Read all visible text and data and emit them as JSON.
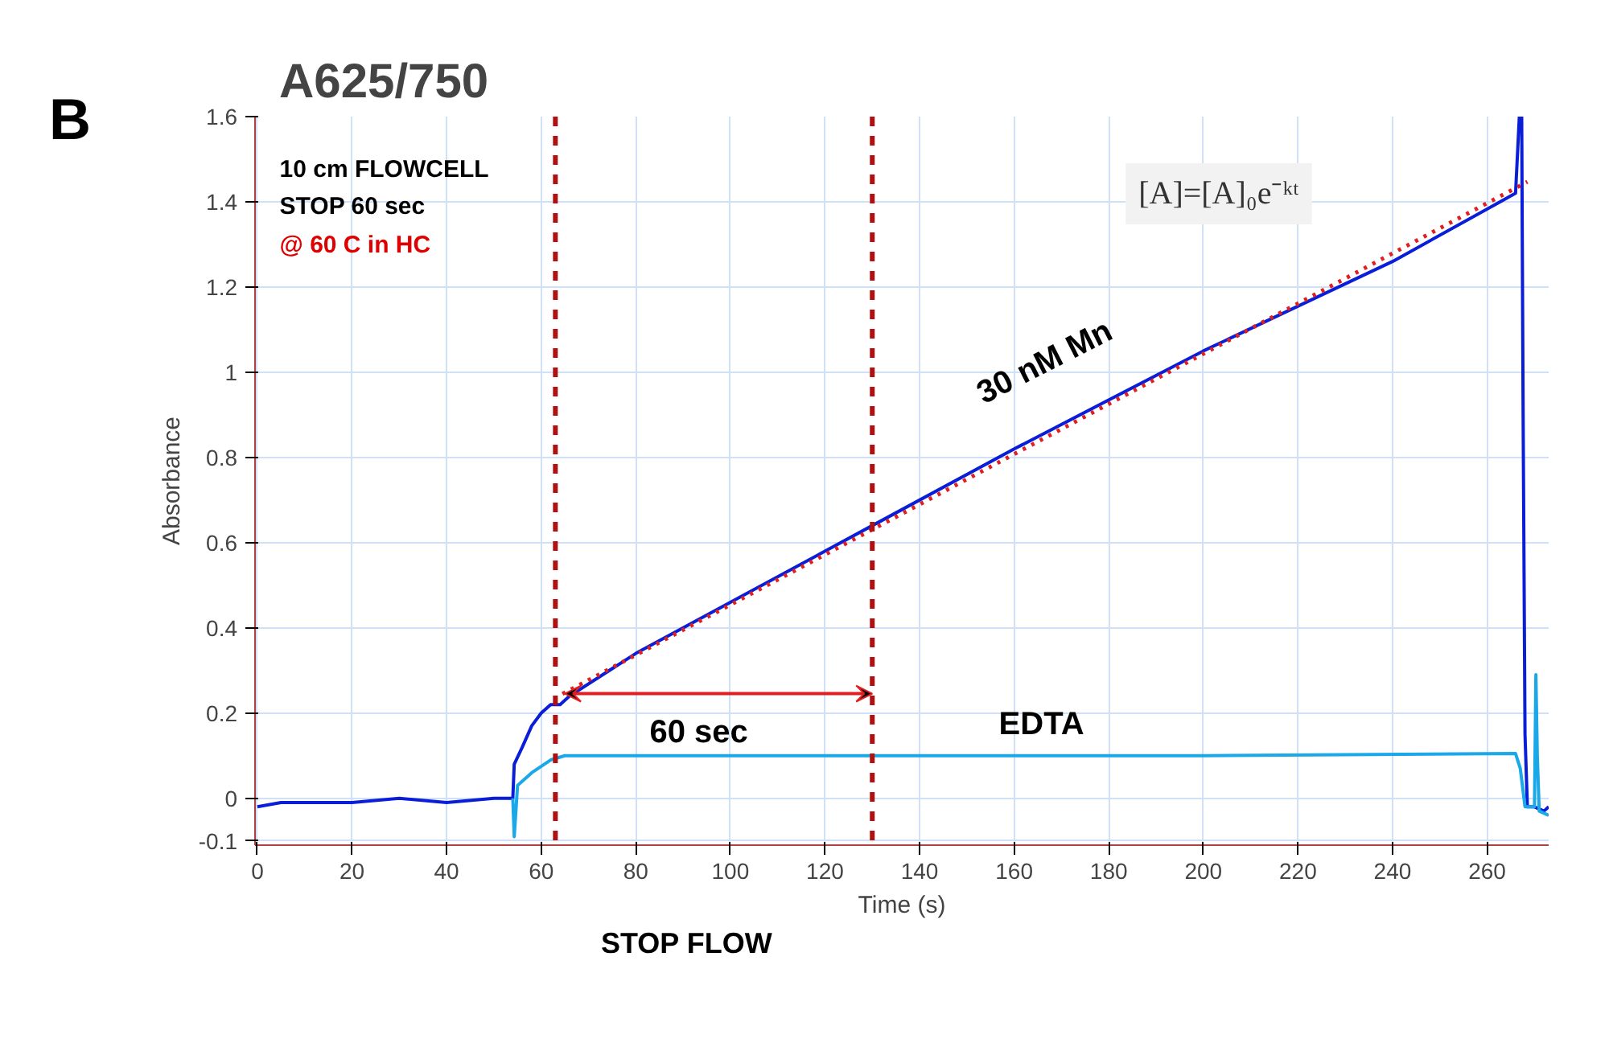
{
  "chart_data": {
    "type": "line",
    "title": "A625/750",
    "xlabel": "Time (s)",
    "ylabel": "Absorbance",
    "xlim": [
      -0.5,
      273
    ],
    "ylim": [
      -0.11,
      1.6
    ],
    "xticks": [
      0,
      20,
      40,
      60,
      80,
      100,
      120,
      140,
      160,
      180,
      200,
      220,
      240,
      260
    ],
    "yticks": [
      -0.1,
      0,
      0.2,
      0.4,
      0.6,
      0.8,
      1,
      1.2,
      1.4,
      1.6
    ],
    "grid": true,
    "line_style": "solid",
    "series": [
      {
        "color": "#0a1ed8",
        "x": [
          0,
          5,
          20,
          30,
          40,
          50,
          54,
          54.3,
          56,
          58,
          60,
          62,
          64,
          66,
          80,
          100,
          130,
          160,
          200,
          240,
          266,
          266.8,
          267.3,
          267.6,
          268,
          268.5,
          270,
          272,
          273
        ],
        "values": [
          -0.02,
          -0.01,
          -0.01,
          0,
          -0.01,
          0,
          0,
          0.08,
          0.12,
          0.17,
          0.2,
          0.22,
          0.22,
          0.24,
          0.34,
          0.46,
          0.64,
          0.82,
          1.05,
          1.26,
          1.42,
          1.6,
          1.6,
          0.9,
          0.15,
          -0.02,
          -0.02,
          -0.03,
          -0.02
        ]
      },
      {
        "color": "#1aa8e8",
        "x": [
          54,
          54.3,
          55,
          58,
          62,
          65,
          100,
          150,
          200,
          266,
          267,
          268,
          270,
          270.3,
          270.6,
          271,
          273
        ],
        "values": [
          0,
          -0.09,
          0.03,
          0.06,
          0.09,
          0.1,
          0.1,
          0.1,
          0.1,
          0.105,
          0.07,
          -0.02,
          -0.02,
          0.29,
          0.1,
          -0.03,
          -0.04
        ]
      },
      {
        "color": "#e02020",
        "line_style": "dotted",
        "x": [
          64.5,
          268.5
        ],
        "values": [
          0.245,
          1.447
        ]
      }
    ],
    "ref_lines": [
      {
        "axis": "x",
        "value": 63,
        "color": "#b01010",
        "line_style": "dashed"
      },
      {
        "axis": "x",
        "value": 130,
        "color": "#b01010",
        "line_style": "dashed"
      }
    ],
    "annotations": [
      "B",
      "10 cm FLOWCELL",
      "STOP 60 sec",
      "@ 60 C in HC",
      "[A]=[A]₀e⁻ᵏᵗ",
      "STOP FLOW",
      "30 nM Mn",
      "EDTA",
      "60 sec"
    ]
  }
}
